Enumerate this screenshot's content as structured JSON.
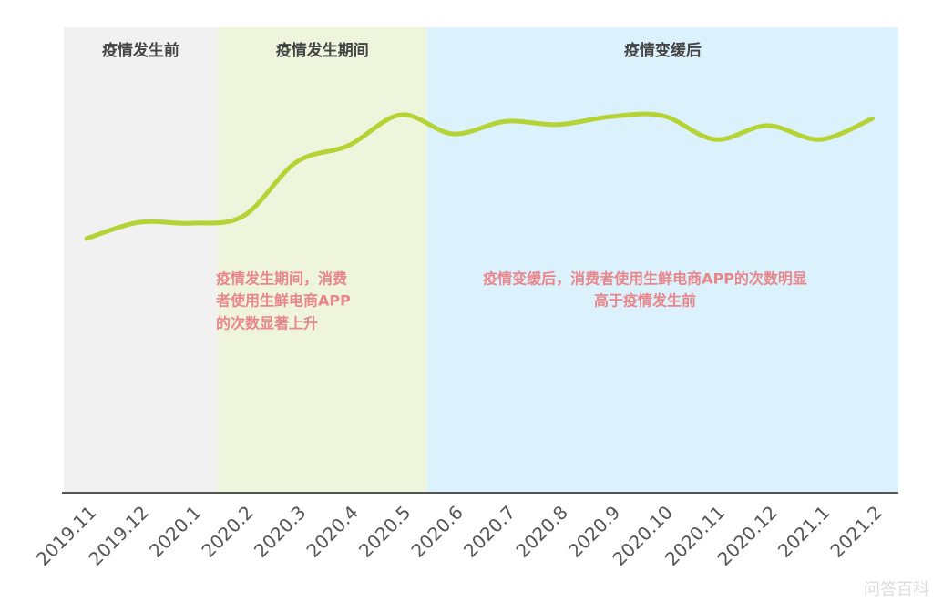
{
  "chart_data": {
    "type": "line",
    "categories": [
      "2019.11",
      "2019.12",
      "2020.1",
      "2020.2",
      "2020.3",
      "2020.4",
      "2020.5",
      "2020.6",
      "2020.7",
      "2020.8",
      "2020.9",
      "2020.10",
      "2020.11",
      "2020.12",
      "2021.1",
      "2021.2"
    ],
    "series": [
      {
        "color": "#b5d334",
        "values": [
          54.6,
          58.1,
          57.9,
          59.5,
          71.0,
          74.6,
          81.2,
          77.1,
          79.8,
          79.1,
          80.8,
          81.0,
          75.9,
          78.9,
          75.9,
          80.4
        ]
      }
    ],
    "ylim": [
      0,
      100
    ],
    "regions": [
      {
        "label": "疫情发生前",
        "color": "#f1f1f1",
        "start": "2019.11",
        "end": "2020.1"
      },
      {
        "label": "疫情发生期间",
        "color": "#eff5dc",
        "start": "2020.2",
        "end": "2020.5"
      },
      {
        "label": "疫情变缓后",
        "color": "#dbf1fb",
        "start": "2020.6",
        "end": "2021.2"
      }
    ],
    "annotations": [
      {
        "lines": [
          "疫情发生期间，消费",
          "者使用生鲜电商APP",
          "的次数显著上升"
        ]
      },
      {
        "lines": [
          "疫情变缓后，消费者使用生鲜电商APP的次数明显",
          "高于疫情发生前"
        ]
      }
    ],
    "watermark": "问答百科"
  }
}
